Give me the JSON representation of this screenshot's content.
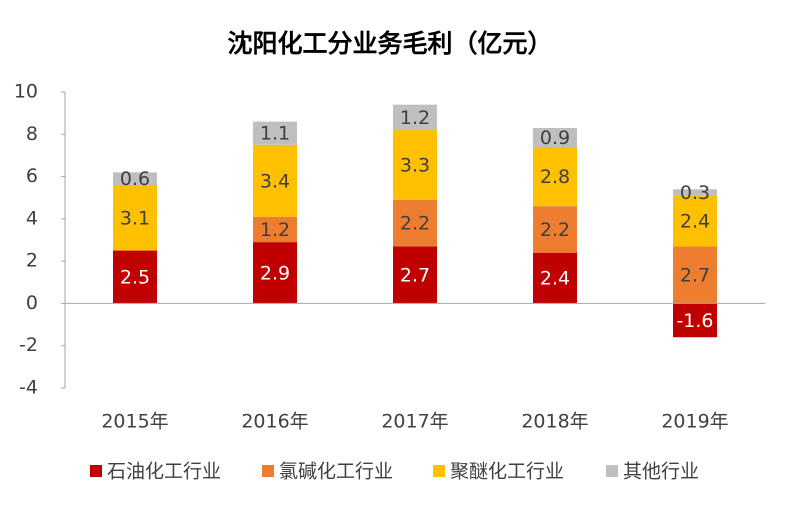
{
  "chart_data": {
    "type": "stacked_bar",
    "title": "沈阳化工分业务毛利（亿元）",
    "categories": [
      "2015年",
      "2016年",
      "2017年",
      "2018年",
      "2019年"
    ],
    "series": [
      {
        "name": "石油化工行业",
        "color": "#c00000",
        "values": [
          2.5,
          2.9,
          2.7,
          2.4,
          -1.6
        ]
      },
      {
        "name": "氯碱化工行业",
        "color": "#ed7d31",
        "values": [
          null,
          1.2,
          2.2,
          2.2,
          2.7
        ]
      },
      {
        "name": "聚醚化工行业",
        "color": "#ffc000",
        "values": [
          3.1,
          3.4,
          3.3,
          2.8,
          2.4
        ]
      },
      {
        "name": "其他行业",
        "color": "#bfbfbf",
        "values": [
          0.6,
          1.1,
          1.2,
          0.9,
          0.3
        ]
      }
    ],
    "ylim": [
      -4,
      10
    ],
    "yticks": [
      -4,
      -2,
      0,
      2,
      4,
      6,
      8,
      10
    ],
    "legend": "bottom"
  }
}
